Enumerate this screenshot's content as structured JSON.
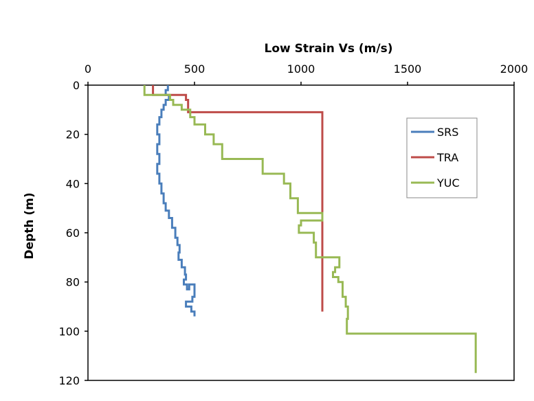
{
  "chart_data": {
    "type": "line",
    "xlabel": "Low Strain Vs (m/s)",
    "ylabel": "Depth (m)",
    "xlim": [
      0,
      2000
    ],
    "ylim": [
      0,
      120
    ],
    "x_ticks": [
      "0",
      "500",
      "1000",
      "1500",
      "2000"
    ],
    "y_ticks": [
      "0",
      "20",
      "40",
      "60",
      "80",
      "100",
      "120"
    ],
    "x_axis_position": "top",
    "y_axis_inverted": true,
    "grid": false,
    "legend_position": "right",
    "series": [
      {
        "name": "SRS",
        "color": "#4a7ebb",
        "points": [
          [
            375,
            0
          ],
          [
            375,
            2
          ],
          [
            365,
            2
          ],
          [
            365,
            4
          ],
          [
            380,
            4
          ],
          [
            380,
            6
          ],
          [
            365,
            6
          ],
          [
            365,
            8
          ],
          [
            355,
            8
          ],
          [
            355,
            10
          ],
          [
            345,
            10
          ],
          [
            345,
            13
          ],
          [
            335,
            13
          ],
          [
            335,
            16
          ],
          [
            325,
            16
          ],
          [
            325,
            20
          ],
          [
            335,
            20
          ],
          [
            335,
            24
          ],
          [
            325,
            24
          ],
          [
            325,
            28
          ],
          [
            335,
            28
          ],
          [
            335,
            32
          ],
          [
            325,
            32
          ],
          [
            325,
            36
          ],
          [
            335,
            36
          ],
          [
            335,
            40
          ],
          [
            345,
            40
          ],
          [
            345,
            44
          ],
          [
            355,
            44
          ],
          [
            355,
            48
          ],
          [
            365,
            48
          ],
          [
            365,
            51
          ],
          [
            380,
            51
          ],
          [
            380,
            54
          ],
          [
            395,
            54
          ],
          [
            395,
            58
          ],
          [
            410,
            58
          ],
          [
            410,
            62
          ],
          [
            420,
            62
          ],
          [
            420,
            65
          ],
          [
            430,
            65
          ],
          [
            430,
            68
          ],
          [
            425,
            68
          ],
          [
            425,
            71
          ],
          [
            440,
            71
          ],
          [
            440,
            74
          ],
          [
            455,
            74
          ],
          [
            455,
            77
          ],
          [
            460,
            77
          ],
          [
            460,
            79
          ],
          [
            450,
            79
          ],
          [
            450,
            81
          ],
          [
            465,
            81
          ],
          [
            465,
            83
          ],
          [
            475,
            83
          ],
          [
            475,
            81
          ],
          [
            500,
            81
          ],
          [
            500,
            86
          ],
          [
            490,
            86
          ],
          [
            490,
            88
          ],
          [
            460,
            88
          ],
          [
            460,
            90
          ],
          [
            485,
            90
          ],
          [
            485,
            92
          ],
          [
            500,
            92
          ],
          [
            500,
            94
          ]
        ]
      },
      {
        "name": "TRA",
        "color": "#be4b48",
        "points": [
          [
            305,
            0
          ],
          [
            305,
            4
          ],
          [
            460,
            4
          ],
          [
            460,
            6
          ],
          [
            470,
            6
          ],
          [
            470,
            11
          ],
          [
            1100,
            11
          ],
          [
            1100,
            92
          ]
        ]
      },
      {
        "name": "YUC",
        "color": "#98b954",
        "points": [
          [
            265,
            0
          ],
          [
            265,
            4
          ],
          [
            385,
            4
          ],
          [
            385,
            6
          ],
          [
            400,
            6
          ],
          [
            400,
            8
          ],
          [
            440,
            8
          ],
          [
            440,
            10
          ],
          [
            480,
            10
          ],
          [
            480,
            13
          ],
          [
            500,
            13
          ],
          [
            500,
            16
          ],
          [
            550,
            16
          ],
          [
            550,
            20
          ],
          [
            590,
            20
          ],
          [
            590,
            24
          ],
          [
            630,
            24
          ],
          [
            630,
            30
          ],
          [
            820,
            30
          ],
          [
            820,
            36
          ],
          [
            920,
            36
          ],
          [
            920,
            40
          ],
          [
            950,
            40
          ],
          [
            950,
            46
          ],
          [
            985,
            46
          ],
          [
            985,
            52
          ],
          [
            1100,
            52
          ],
          [
            1100,
            55
          ],
          [
            1000,
            55
          ],
          [
            1000,
            57
          ],
          [
            990,
            57
          ],
          [
            990,
            60
          ],
          [
            1060,
            60
          ],
          [
            1060,
            64
          ],
          [
            1070,
            64
          ],
          [
            1070,
            70
          ],
          [
            1180,
            70
          ],
          [
            1180,
            74
          ],
          [
            1160,
            74
          ],
          [
            1160,
            76
          ],
          [
            1150,
            76
          ],
          [
            1150,
            78
          ],
          [
            1175,
            78
          ],
          [
            1175,
            80
          ],
          [
            1195,
            80
          ],
          [
            1195,
            86
          ],
          [
            1210,
            86
          ],
          [
            1210,
            90
          ],
          [
            1220,
            90
          ],
          [
            1220,
            95
          ],
          [
            1215,
            95
          ],
          [
            1215,
            101
          ],
          [
            1820,
            101
          ],
          [
            1820,
            117
          ]
        ]
      }
    ]
  }
}
